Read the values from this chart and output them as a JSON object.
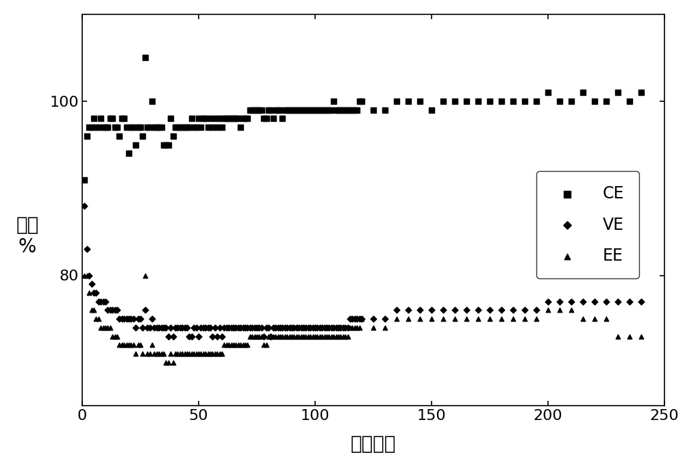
{
  "title": "",
  "xlabel": "循环次数",
  "ylabel": "效率\n%",
  "xlim": [
    0,
    250
  ],
  "ylim": [
    65,
    110
  ],
  "yticks": [
    80,
    100
  ],
  "xticks": [
    0,
    50,
    100,
    150,
    200,
    250
  ],
  "legend_labels": [
    "CE",
    "VE",
    "EE"
  ],
  "color": "black",
  "figsize": [
    10.0,
    6.9
  ],
  "dpi": 100,
  "CE_x": [
    1,
    2,
    3,
    4,
    5,
    6,
    7,
    8,
    9,
    10,
    11,
    12,
    13,
    14,
    15,
    16,
    17,
    18,
    19,
    20,
    21,
    22,
    23,
    24,
    25,
    26,
    27,
    28,
    29,
    30,
    31,
    32,
    33,
    34,
    35,
    36,
    37,
    38,
    39,
    40,
    41,
    42,
    43,
    44,
    45,
    46,
    47,
    48,
    49,
    50,
    51,
    52,
    53,
    54,
    55,
    56,
    57,
    58,
    59,
    60,
    61,
    62,
    63,
    64,
    65,
    66,
    67,
    68,
    69,
    70,
    71,
    72,
    73,
    74,
    75,
    76,
    77,
    78,
    79,
    80,
    81,
    82,
    83,
    84,
    85,
    86,
    87,
    88,
    89,
    90,
    91,
    92,
    93,
    94,
    95,
    96,
    97,
    98,
    99,
    100,
    101,
    102,
    103,
    104,
    105,
    106,
    107,
    108,
    109,
    110,
    111,
    112,
    113,
    114,
    115,
    116,
    117,
    118,
    119,
    120,
    125,
    130,
    135,
    140,
    145,
    150,
    155,
    160,
    165,
    170,
    175,
    180,
    185,
    190,
    195,
    200,
    205,
    210,
    215,
    220,
    225,
    230,
    235,
    240
  ],
  "CE_y": [
    91,
    96,
    97,
    97,
    98,
    97,
    97,
    98,
    97,
    97,
    97,
    98,
    98,
    97,
    97,
    96,
    98,
    98,
    97,
    94,
    97,
    97,
    95,
    97,
    97,
    96,
    105,
    97,
    97,
    100,
    97,
    97,
    97,
    97,
    95,
    95,
    95,
    98,
    96,
    97,
    97,
    97,
    97,
    97,
    97,
    97,
    98,
    97,
    97,
    98,
    97,
    98,
    98,
    97,
    98,
    97,
    98,
    97,
    98,
    97,
    98,
    98,
    98,
    98,
    98,
    98,
    98,
    97,
    98,
    98,
    98,
    99,
    99,
    99,
    99,
    99,
    99,
    98,
    98,
    99,
    99,
    98,
    99,
    99,
    99,
    98,
    99,
    99,
    99,
    99,
    99,
    99,
    99,
    99,
    99,
    99,
    99,
    99,
    99,
    99,
    99,
    99,
    99,
    99,
    99,
    99,
    99,
    100,
    99,
    99,
    99,
    99,
    99,
    99,
    99,
    99,
    99,
    99,
    100,
    100,
    99,
    99,
    100,
    100,
    100,
    99,
    100,
    100,
    100,
    100,
    100,
    100,
    100,
    100,
    100,
    101,
    100,
    100,
    101,
    100,
    100,
    101,
    100,
    101
  ],
  "VE_x": [
    1,
    2,
    3,
    4,
    5,
    6,
    7,
    8,
    9,
    10,
    11,
    12,
    13,
    14,
    15,
    16,
    17,
    18,
    19,
    20,
    21,
    22,
    23,
    24,
    25,
    26,
    27,
    28,
    29,
    30,
    31,
    32,
    33,
    34,
    35,
    36,
    37,
    38,
    39,
    40,
    41,
    42,
    43,
    44,
    45,
    46,
    47,
    48,
    49,
    50,
    51,
    52,
    53,
    54,
    55,
    56,
    57,
    58,
    59,
    60,
    61,
    62,
    63,
    64,
    65,
    66,
    67,
    68,
    69,
    70,
    71,
    72,
    73,
    74,
    75,
    76,
    77,
    78,
    79,
    80,
    81,
    82,
    83,
    84,
    85,
    86,
    87,
    88,
    89,
    90,
    91,
    92,
    93,
    94,
    95,
    96,
    97,
    98,
    99,
    100,
    101,
    102,
    103,
    104,
    105,
    106,
    107,
    108,
    109,
    110,
    111,
    112,
    113,
    114,
    115,
    116,
    117,
    118,
    119,
    120,
    125,
    130,
    135,
    140,
    145,
    150,
    155,
    160,
    165,
    170,
    175,
    180,
    185,
    190,
    195,
    200,
    205,
    210,
    215,
    220,
    225,
    230,
    235,
    240
  ],
  "VE_y": [
    88,
    83,
    80,
    79,
    78,
    78,
    77,
    77,
    77,
    77,
    76,
    76,
    76,
    76,
    76,
    75,
    75,
    75,
    75,
    75,
    75,
    75,
    74,
    75,
    75,
    74,
    76,
    74,
    74,
    75,
    74,
    74,
    74,
    74,
    74,
    74,
    73,
    74,
    73,
    74,
    74,
    74,
    74,
    74,
    74,
    73,
    73,
    74,
    74,
    73,
    74,
    74,
    74,
    74,
    74,
    73,
    74,
    73,
    74,
    73,
    74,
    74,
    74,
    74,
    74,
    74,
    74,
    74,
    74,
    74,
    74,
    74,
    74,
    74,
    74,
    74,
    74,
    73,
    74,
    74,
    73,
    74,
    74,
    74,
    74,
    74,
    74,
    74,
    74,
    74,
    74,
    74,
    74,
    74,
    74,
    74,
    74,
    74,
    74,
    74,
    74,
    74,
    74,
    74,
    74,
    74,
    74,
    74,
    74,
    74,
    74,
    74,
    74,
    74,
    75,
    75,
    75,
    75,
    75,
    75,
    75,
    75,
    76,
    76,
    76,
    76,
    76,
    76,
    76,
    76,
    76,
    76,
    76,
    76,
    76,
    77,
    77,
    77,
    77,
    77,
    77,
    77,
    77,
    77
  ],
  "EE_x": [
    1,
    2,
    3,
    4,
    5,
    6,
    7,
    8,
    9,
    10,
    11,
    12,
    13,
    14,
    15,
    16,
    17,
    18,
    19,
    20,
    21,
    22,
    23,
    24,
    25,
    26,
    27,
    28,
    29,
    30,
    31,
    32,
    33,
    34,
    35,
    36,
    37,
    38,
    39,
    40,
    41,
    42,
    43,
    44,
    45,
    46,
    47,
    48,
    49,
    50,
    51,
    52,
    53,
    54,
    55,
    56,
    57,
    58,
    59,
    60,
    61,
    62,
    63,
    64,
    65,
    66,
    67,
    68,
    69,
    70,
    71,
    72,
    73,
    74,
    75,
    76,
    77,
    78,
    79,
    80,
    81,
    82,
    83,
    84,
    85,
    86,
    87,
    88,
    89,
    90,
    91,
    92,
    93,
    94,
    95,
    96,
    97,
    98,
    99,
    100,
    101,
    102,
    103,
    104,
    105,
    106,
    107,
    108,
    109,
    110,
    111,
    112,
    113,
    114,
    115,
    116,
    117,
    118,
    119,
    120,
    125,
    130,
    135,
    140,
    145,
    150,
    155,
    160,
    165,
    170,
    175,
    180,
    185,
    190,
    195,
    200,
    205,
    210,
    215,
    220,
    225,
    230,
    235,
    240
  ],
  "EE_y": [
    80,
    80,
    78,
    76,
    76,
    75,
    75,
    74,
    74,
    74,
    74,
    74,
    73,
    73,
    73,
    72,
    72,
    72,
    72,
    72,
    72,
    72,
    71,
    72,
    72,
    71,
    80,
    71,
    71,
    72,
    71,
    71,
    71,
    71,
    71,
    70,
    70,
    71,
    70,
    71,
    71,
    71,
    71,
    71,
    71,
    71,
    71,
    71,
    71,
    71,
    71,
    71,
    71,
    71,
    71,
    71,
    71,
    71,
    71,
    71,
    72,
    72,
    72,
    72,
    72,
    72,
    72,
    72,
    72,
    72,
    72,
    73,
    73,
    73,
    73,
    73,
    73,
    72,
    72,
    73,
    73,
    73,
    73,
    73,
    73,
    73,
    73,
    73,
    73,
    73,
    73,
    73,
    73,
    73,
    73,
    73,
    73,
    73,
    73,
    73,
    73,
    73,
    73,
    73,
    73,
    73,
    73,
    73,
    73,
    73,
    73,
    73,
    73,
    73,
    74,
    74,
    74,
    74,
    74,
    75,
    74,
    74,
    75,
    75,
    75,
    75,
    75,
    75,
    75,
    75,
    75,
    75,
    75,
    75,
    75,
    76,
    76,
    76,
    75,
    75,
    75,
    73,
    73,
    73
  ]
}
